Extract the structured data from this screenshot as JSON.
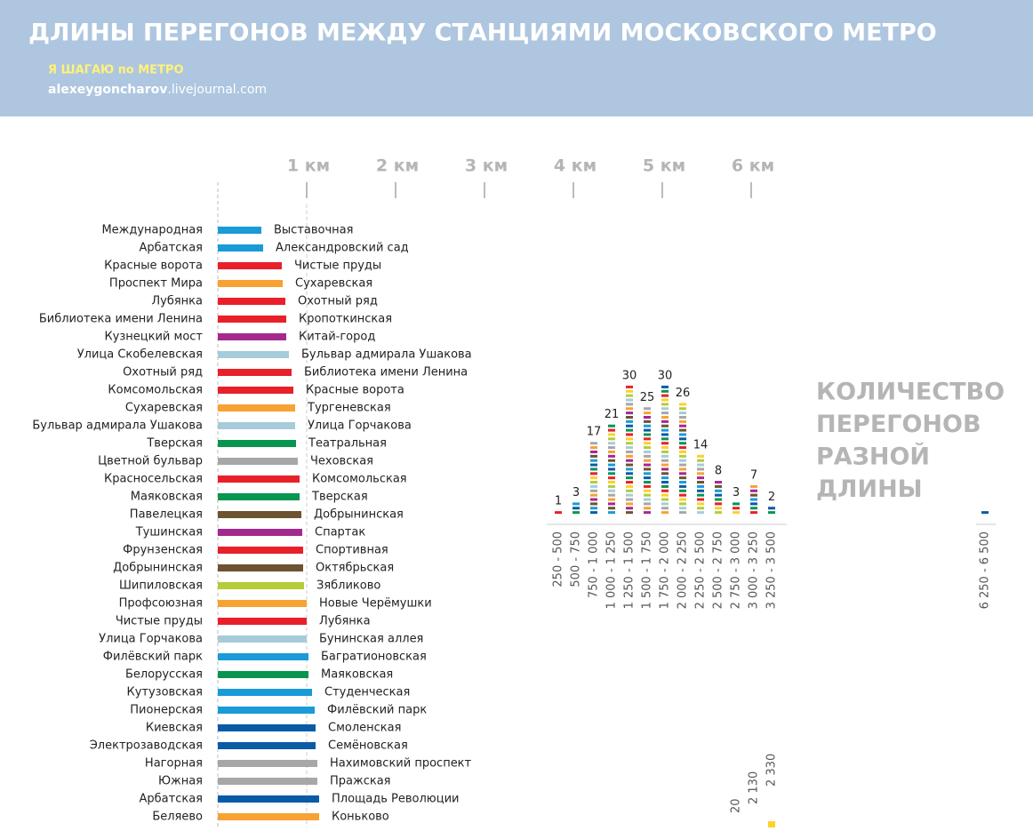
{
  "header": {
    "title": "ДЛИНЫ ПЕРЕГОНОВ МЕЖДУ СТАНЦИЯМИ МОСКОВСКОГО МЕТРО",
    "tagline": "Я ШАГАЮ по МЕТРО",
    "site_name": "alexeygoncharov",
    "site_domain": ".livejournal.com"
  },
  "chart_data": [
    {
      "type": "hbar",
      "categories": [
        "Международная",
        "Арбатская",
        "Красные ворота",
        "Проспект Мира",
        "Лубянка",
        "Библиотека имени Ленина",
        "Кузнецкий мост",
        "Улица Скобелевская",
        "Охотный ряд",
        "Комсомольская",
        "Сухаревская",
        "Бульвар адмирала Ушакова",
        "Тверская",
        "Цветной бульвар",
        "Красносельская",
        "Маяковская",
        "Павелецкая",
        "Тушинская",
        "Фрунзенская",
        "Добрынинская",
        "Шипиловская",
        "Профсоюзная",
        "Чистые пруды",
        "Улица Горчакова",
        "Филёвский парк",
        "Белорусская",
        "Кутузовская",
        "Пионерская",
        "Киевская",
        "Электрозаводская",
        "Нагорная",
        "Южная",
        "Арбатская",
        "Беляево"
      ],
      "destinations": [
        "Выставочная",
        "Александровский сад",
        "Чистые пруды",
        "Сухаревская",
        "Охотный ряд",
        "Кропоткинская",
        "Китай-город",
        "Бульвар адмирала Ушакова",
        "Библиотека имени Ленина",
        "Красные ворота",
        "Тургеневская",
        "Улица Горчакова",
        "Театральная",
        "Чеховская",
        "Комсомольская",
        "Тверская",
        "Добрынинская",
        "Спартак",
        "Спортивная",
        "Октябрьская",
        "Зябликово",
        "Новые Черёмушки",
        "Лубянка",
        "Бунинская аллея",
        "Багратионовская",
        "Маяковская",
        "Студенческая",
        "Филёвский парк",
        "Смоленская",
        "Семёновская",
        "Нахимовский проспект",
        "Пражская",
        "Площадь Революции",
        "Коньково"
      ],
      "values": [
        490,
        510,
        720,
        730,
        760,
        770,
        770,
        800,
        830,
        850,
        870,
        870,
        880,
        900,
        920,
        920,
        940,
        950,
        960,
        960,
        970,
        1000,
        1000,
        1000,
        1020,
        1020,
        1060,
        1090,
        1100,
        1100,
        1120,
        1120,
        1140,
        1140
      ],
      "colors": [
        "#1a9bd7",
        "#1a9bd7",
        "#e8202a",
        "#f7a233",
        "#e8202a",
        "#e8202a",
        "#a5288f",
        "#a6cbdb",
        "#e8202a",
        "#e8202a",
        "#f7a233",
        "#a6cbdb",
        "#079550",
        "#a7a7a8",
        "#e8202a",
        "#079550",
        "#6d5330",
        "#a5288f",
        "#e8202a",
        "#6d5330",
        "#b3cd3a",
        "#f7a233",
        "#e8202a",
        "#a6cbdb",
        "#1a9bd7",
        "#079550",
        "#1a9bd7",
        "#1a9bd7",
        "#0a5ba6",
        "#0a5ba6",
        "#a7a7a8",
        "#a7a7a8",
        "#0a5ba6",
        "#f7a233"
      ],
      "xlim": [
        0,
        7000
      ],
      "xticks": [
        {
          "value": 1000,
          "label": "1 км"
        },
        {
          "value": 2000,
          "label": "2 км"
        },
        {
          "value": 3000,
          "label": "3 км"
        },
        {
          "value": 4000,
          "label": "4 км"
        },
        {
          "value": 5000,
          "label": "5 км"
        },
        {
          "value": 6000,
          "label": "6 км"
        }
      ]
    },
    {
      "type": "stack-hist",
      "title_lines": [
        "КОЛИЧЕСТВО",
        "ПЕРЕГОНОВ",
        "РАЗНОЙ",
        "ДЛИНЫ"
      ],
      "categories": [
        "250 - 500",
        "500 - 750",
        "750 - 1 000",
        "1 000 - 1 250",
        "1 250 - 1 500",
        "1 500 - 1 750",
        "1 750 - 2 000",
        "2 000 - 2 250",
        "2 250 - 2 500",
        "2 500 - 2 750",
        "2 750 - 3 000",
        "3 000 - 3 250",
        "3 250 - 3 500",
        "6 250 - 6 500"
      ],
      "values": [
        1,
        3,
        17,
        21,
        30,
        25,
        30,
        26,
        14,
        8,
        3,
        7,
        2,
        1
      ],
      "value_labels": [
        "1",
        "3",
        "17",
        "21",
        "30",
        "25",
        "30",
        "26",
        "14",
        "8",
        "3",
        "7",
        "2",
        null
      ],
      "stack_colors": [
        "#e8202a",
        "#079550",
        "#0a5ba6",
        "#1a9bd7",
        "#6d5330",
        "#a5288f",
        "#f7a233",
        "#a7a7a8",
        "#a6cbdb",
        "#b3cd3a",
        "#fcd12a"
      ],
      "bottom_labels": [
        "2 330",
        "2 130",
        "20"
      ]
    }
  ]
}
